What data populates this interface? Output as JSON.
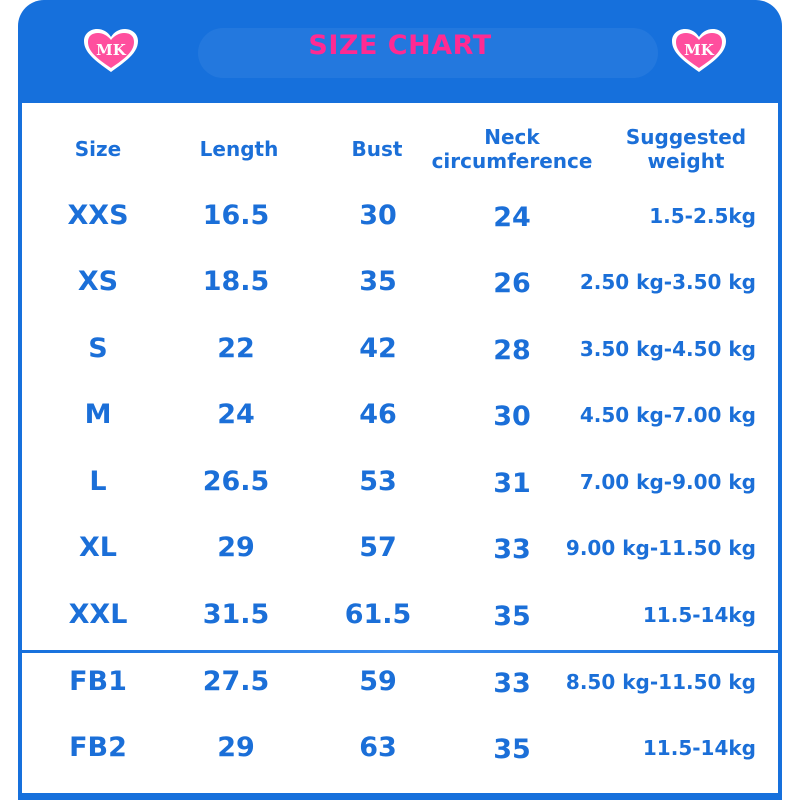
{
  "header": {
    "title": "SIZE CHART",
    "logo_text": "MK"
  },
  "colors": {
    "frame_blue": "#1670dc",
    "text_blue": "#1b6fd8",
    "title_pink": "#ff2a92",
    "heart_pink": "#ff4f9e"
  },
  "table": {
    "headers": {
      "size": "Size",
      "length": "Length",
      "bust": "Bust",
      "neck_line1": "Neck",
      "neck_line2": "circumference",
      "weight_line1": "Suggested",
      "weight_line2": "weight"
    },
    "rows": [
      {
        "size": "XXS",
        "length": "16.5",
        "bust": "30",
        "neck": "24",
        "weight": "1.5-2.5kg"
      },
      {
        "size": "XS",
        "length": "18.5",
        "bust": "35",
        "neck": "26",
        "weight": "2.50 kg-3.50 kg"
      },
      {
        "size": "S",
        "length": "22",
        "bust": "42",
        "neck": "28",
        "weight": "3.50 kg-4.50 kg"
      },
      {
        "size": "M",
        "length": "24",
        "bust": "46",
        "neck": "30",
        "weight": "4.50 kg-7.00 kg"
      },
      {
        "size": "L",
        "length": "26.5",
        "bust": "53",
        "neck": "31",
        "weight": "7.00 kg-9.00 kg"
      },
      {
        "size": "XL",
        "length": "29",
        "bust": "57",
        "neck": "33",
        "weight": "9.00 kg-11.50 kg"
      },
      {
        "size": "XXL",
        "length": "31.5",
        "bust": "61.5",
        "neck": "35",
        "weight": "11.5-14kg"
      },
      {
        "size": "FB1",
        "length": "27.5",
        "bust": "59",
        "neck": "33",
        "weight": "8.50 kg-11.50 kg"
      },
      {
        "size": "FB2",
        "length": "29",
        "bust": "63",
        "neck": "35",
        "weight": "11.5-14kg"
      }
    ]
  }
}
